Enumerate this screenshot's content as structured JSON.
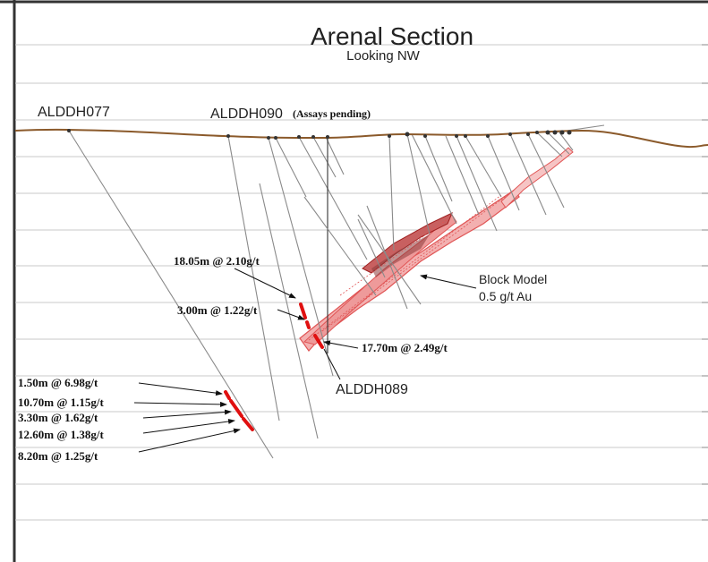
{
  "title": "Arenal Section",
  "subtitle": "Looking NW",
  "drillholes": {
    "alddh077": "ALDDH077",
    "alddh090": "ALDDH090",
    "alddh090_note": "(Assays pending)",
    "alddh089": "ALDDH089"
  },
  "block_model": {
    "line1": "Block Model",
    "line2": "0.5 g/t Au"
  },
  "intercepts": {
    "alddh089_1": "18.05m @ 2.10g/t",
    "alddh089_2": "3.00m @ 1.22g/t",
    "alddh089_3": "17.70m @ 2.49g/t",
    "alddh077_1": "1.50m @ 6.98g/t",
    "alddh077_2": "10.70m @ 1.15g/t",
    "alddh077_3": "3.30m @ 1.62g/t",
    "alddh077_4": "12.60m @ 1.38g/t",
    "alddh077_5": "8.20m @ 1.25g/t"
  },
  "colors": {
    "topography": "#8b5a2b",
    "grid": "#c8c8c8",
    "trace": "#8a8a8a",
    "model": "#e05555",
    "model_dark": "#a02020",
    "intercept": "#e01010"
  }
}
